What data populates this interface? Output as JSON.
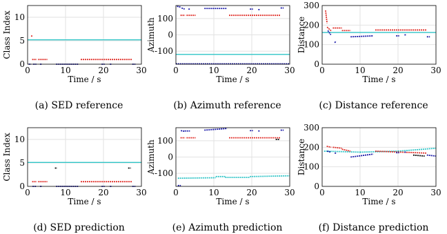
{
  "colors": {
    "cyan": "#2ec4c6",
    "red": "#e0302a",
    "blue": "#1a1aa8",
    "black": "#000000",
    "grid": "#e2e2e2"
  },
  "chart_data": [
    {
      "id": "a",
      "type": "scatter",
      "caption": "(a) SED reference",
      "xlabel": "Time / s",
      "ylabel": "Class Index",
      "xlim": [
        0,
        30
      ],
      "ylim": [
        0,
        12.5
      ],
      "xticks": [
        0,
        10,
        20,
        30
      ],
      "yticks": [
        0,
        5,
        10
      ],
      "grid": true,
      "series": [
        {
          "color": "cyan",
          "segments": [
            [
              0,
              30,
              5.2
            ]
          ]
        },
        {
          "color": "red",
          "segments": [
            [
              0.9,
              1.3,
              6
            ],
            [
              1.2,
              2.4,
              1
            ],
            [
              2.8,
              5.2,
              1
            ],
            [
              14,
              27.5,
              1
            ]
          ]
        },
        {
          "color": "blue",
          "segments": [
            [
              0.3,
              0.9,
              0
            ],
            [
              1.5,
              2.3,
              0
            ],
            [
              3.3,
              3.7,
              0
            ],
            [
              7.5,
              13.5,
              0
            ],
            [
              19.5,
              20.3,
              0
            ],
            [
              21.7,
              22.2,
              0
            ],
            [
              27.6,
              28.4,
              0
            ]
          ]
        }
      ]
    },
    {
      "id": "b",
      "type": "scatter",
      "caption": "(b) Azimuth reference",
      "xlabel": "Time / s",
      "ylabel": "Azimuth",
      "xlim": [
        0,
        30
      ],
      "ylim": [
        -180,
        180
      ],
      "xticks": [
        0,
        10,
        20,
        30
      ],
      "yticks": [
        -100,
        0,
        100
      ],
      "grid": true,
      "series": [
        {
          "color": "cyan",
          "segments": [
            [
              0,
              30,
              -120
            ]
          ]
        },
        {
          "color": "red",
          "segments": [
            [
              1.2,
              2.4,
              120
            ],
            [
              2.8,
              5.2,
              120
            ],
            [
              14,
              27.5,
              120
            ]
          ]
        },
        {
          "color": "blue",
          "segments": [
            [
              0.3,
              1.3,
              175,
              170
            ],
            [
              1.5,
              2.3,
              165,
              158
            ],
            [
              3.3,
              3.7,
              158
            ],
            [
              7.5,
              13.5,
              162
            ],
            [
              19.5,
              20.3,
              158
            ],
            [
              21.7,
              22.2,
              155
            ],
            [
              27.6,
              28.4,
              165
            ]
          ]
        },
        {
          "color": "blue",
          "segments": [
            [
              0,
              30,
              -178
            ]
          ]
        }
      ]
    },
    {
      "id": "c",
      "type": "scatter",
      "caption": "(c) Distance reference",
      "xlabel": "Time / s",
      "ylabel": "Distance",
      "xlim": [
        0,
        30
      ],
      "ylim": [
        0,
        300
      ],
      "xticks": [
        0,
        10,
        20,
        30
      ],
      "yticks": [
        0,
        100,
        200,
        300
      ],
      "grid": true,
      "series": [
        {
          "color": "cyan",
          "segments": [
            [
              0,
              30,
              162
            ]
          ]
        },
        {
          "color": "red",
          "segments": [
            [
              0.9,
              1.3,
              275,
              210
            ],
            [
              1.3,
              2.4,
              190,
              170
            ],
            [
              2.8,
              5.2,
              185
            ],
            [
              5.2,
              7.5,
              172
            ],
            [
              14,
              27.5,
              175
            ]
          ]
        },
        {
          "color": "blue",
          "segments": [
            [
              1.5,
              2.3,
              172,
              150
            ],
            [
              3.3,
              3.7,
              110,
              118
            ],
            [
              7.5,
              13.5,
              140,
              145
            ],
            [
              19.5,
              20.3,
              145
            ],
            [
              21.7,
              22.2,
              150
            ],
            [
              27.6,
              28.4,
              140
            ]
          ]
        }
      ]
    },
    {
      "id": "d",
      "type": "scatter",
      "caption": "(d) SED prediction",
      "xlabel": "Time / s",
      "ylabel": "Class Index",
      "xlim": [
        0,
        30
      ],
      "ylim": [
        0,
        12.5
      ],
      "xticks": [
        0,
        10,
        20,
        30
      ],
      "yticks": [
        0,
        5,
        10
      ],
      "grid": true,
      "series": [
        {
          "color": "cyan",
          "segments": [
            [
              0,
              30,
              5.1
            ]
          ]
        },
        {
          "color": "red",
          "segments": [
            [
              1.2,
              2.4,
              1
            ],
            [
              2.8,
              5.2,
              1
            ],
            [
              14,
              27.5,
              1
            ]
          ]
        },
        {
          "color": "blue",
          "segments": [
            [
              1.3,
              2.3,
              0
            ],
            [
              3.3,
              3.7,
              0
            ],
            [
              7.5,
              13.5,
              0
            ],
            [
              19.5,
              20.3,
              0
            ],
            [
              21.7,
              22.2,
              0
            ],
            [
              27.6,
              28.4,
              0
            ]
          ]
        },
        {
          "color": "black",
          "segments": [
            [
              7.2,
              7.8,
              3.9
            ],
            [
              26.5,
              27.2,
              3.9
            ]
          ]
        }
      ]
    },
    {
      "id": "e",
      "type": "scatter",
      "caption": "(e) Azimuth prediction",
      "xlabel": "Time / s",
      "ylabel": "Azimuth",
      "xlim": [
        0,
        30
      ],
      "ylim": [
        -180,
        180
      ],
      "xticks": [
        0,
        10,
        20,
        30
      ],
      "yticks": [
        -100,
        0,
        100
      ],
      "grid": true,
      "series": [
        {
          "color": "cyan",
          "segments": [
            [
              0.5,
              10.5,
              -130,
              -127
            ],
            [
              10.5,
              13,
              -120
            ],
            [
              13,
              19.5,
              -125
            ],
            [
              19.5,
              30,
              -120,
              -115
            ]
          ]
        },
        {
          "color": "red",
          "segments": [
            [
              1.2,
              2.4,
              118
            ],
            [
              2.8,
              5.2,
              118
            ],
            [
              14,
              27.5,
              118
            ]
          ]
        },
        {
          "color": "blue",
          "segments": [
            [
              0.5,
              1.3,
              -175
            ],
            [
              1.3,
              2.3,
              162,
              158
            ],
            [
              2.3,
              3.7,
              160
            ],
            [
              7.5,
              13.5,
              165,
              175
            ],
            [
              19.5,
              20.3,
              162
            ],
            [
              21.7,
              22.2,
              160
            ],
            [
              27.6,
              28.4,
              165
            ]
          ]
        },
        {
          "color": "black",
          "segments": [
            [
              26.3,
              27.2,
              108
            ]
          ]
        }
      ]
    },
    {
      "id": "f",
      "type": "scatter",
      "caption": "(f) Distance prediction",
      "xlabel": "Time / s",
      "ylabel": "Distance",
      "xlim": [
        0,
        30
      ],
      "ylim": [
        0,
        300
      ],
      "xticks": [
        0,
        10,
        20,
        30
      ],
      "yticks": [
        0,
        100,
        200,
        300
      ],
      "grid": true,
      "series": [
        {
          "color": "cyan",
          "segments": [
            [
              0.5,
              10,
              180,
              175
            ],
            [
              10,
              20,
              175,
              180
            ],
            [
              20,
              30,
              180,
              195
            ]
          ]
        },
        {
          "color": "red",
          "segments": [
            [
              1.2,
              2.4,
              205,
              200
            ],
            [
              2.8,
              5.2,
              200,
              195
            ],
            [
              5.2,
              7.5,
              190,
              180
            ],
            [
              14,
              27.5,
              180,
              170
            ]
          ]
        },
        {
          "color": "blue",
          "segments": [
            [
              1.3,
              2.3,
              180,
              175
            ],
            [
              3.3,
              3.7,
              170
            ],
            [
              7.5,
              13.5,
              150,
              165
            ],
            [
              19.5,
              20.3,
              172
            ],
            [
              21.7,
              22.2,
              175
            ],
            [
              27.6,
              30,
              160,
              155
            ]
          ]
        },
        {
          "color": "black",
          "segments": [
            [
              24,
              27,
              160,
              155
            ]
          ]
        }
      ]
    }
  ]
}
